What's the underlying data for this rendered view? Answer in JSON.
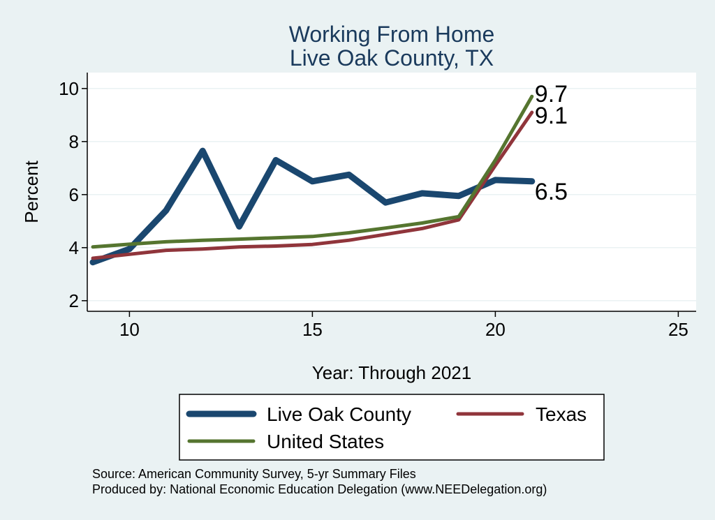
{
  "chart_data": {
    "type": "line",
    "title": [
      "Working From Home",
      "Live Oak County, TX"
    ],
    "xlabel": "Year: Through 2021",
    "ylabel": "Percent",
    "xlim": [
      8.8,
      25
    ],
    "ylim": [
      1.6,
      10.6
    ],
    "xticks": [
      10,
      15,
      20,
      25
    ],
    "yticks": [
      2,
      4,
      6,
      8,
      10
    ],
    "grid": true,
    "legend_position": "bottom",
    "series": [
      {
        "name": "Live Oak County",
        "color": "#1a476f",
        "x": [
          9,
          10,
          11,
          12,
          13,
          14,
          15,
          16,
          17,
          18,
          19,
          20,
          21
        ],
        "y": [
          3.45,
          3.95,
          5.4,
          7.65,
          4.8,
          7.3,
          6.5,
          6.75,
          5.7,
          6.05,
          5.95,
          6.55,
          6.5
        ],
        "end_label": "6.5"
      },
      {
        "name": "Texas",
        "color": "#90353b",
        "x": [
          9,
          10,
          11,
          12,
          13,
          14,
          15,
          16,
          17,
          18,
          19,
          20,
          21
        ],
        "y": [
          3.6,
          3.75,
          3.9,
          3.95,
          4.03,
          4.06,
          4.12,
          4.28,
          4.5,
          4.72,
          5.05,
          7.1,
          9.1
        ],
        "end_label": "9.1"
      },
      {
        "name": "United States",
        "color": "#55752f",
        "x": [
          9,
          10,
          11,
          12,
          13,
          14,
          15,
          16,
          17,
          18,
          19,
          20,
          21
        ],
        "y": [
          4.03,
          4.13,
          4.22,
          4.28,
          4.32,
          4.37,
          4.42,
          4.56,
          4.74,
          4.93,
          5.17,
          7.3,
          9.7
        ],
        "end_label": "9.7"
      }
    ]
  },
  "footer": {
    "source": "Source: American Community Survey, 5-yr Summary Files",
    "produced": "Produced by: National Economic Education Delegation (www.NEEDelegation.org)"
  }
}
